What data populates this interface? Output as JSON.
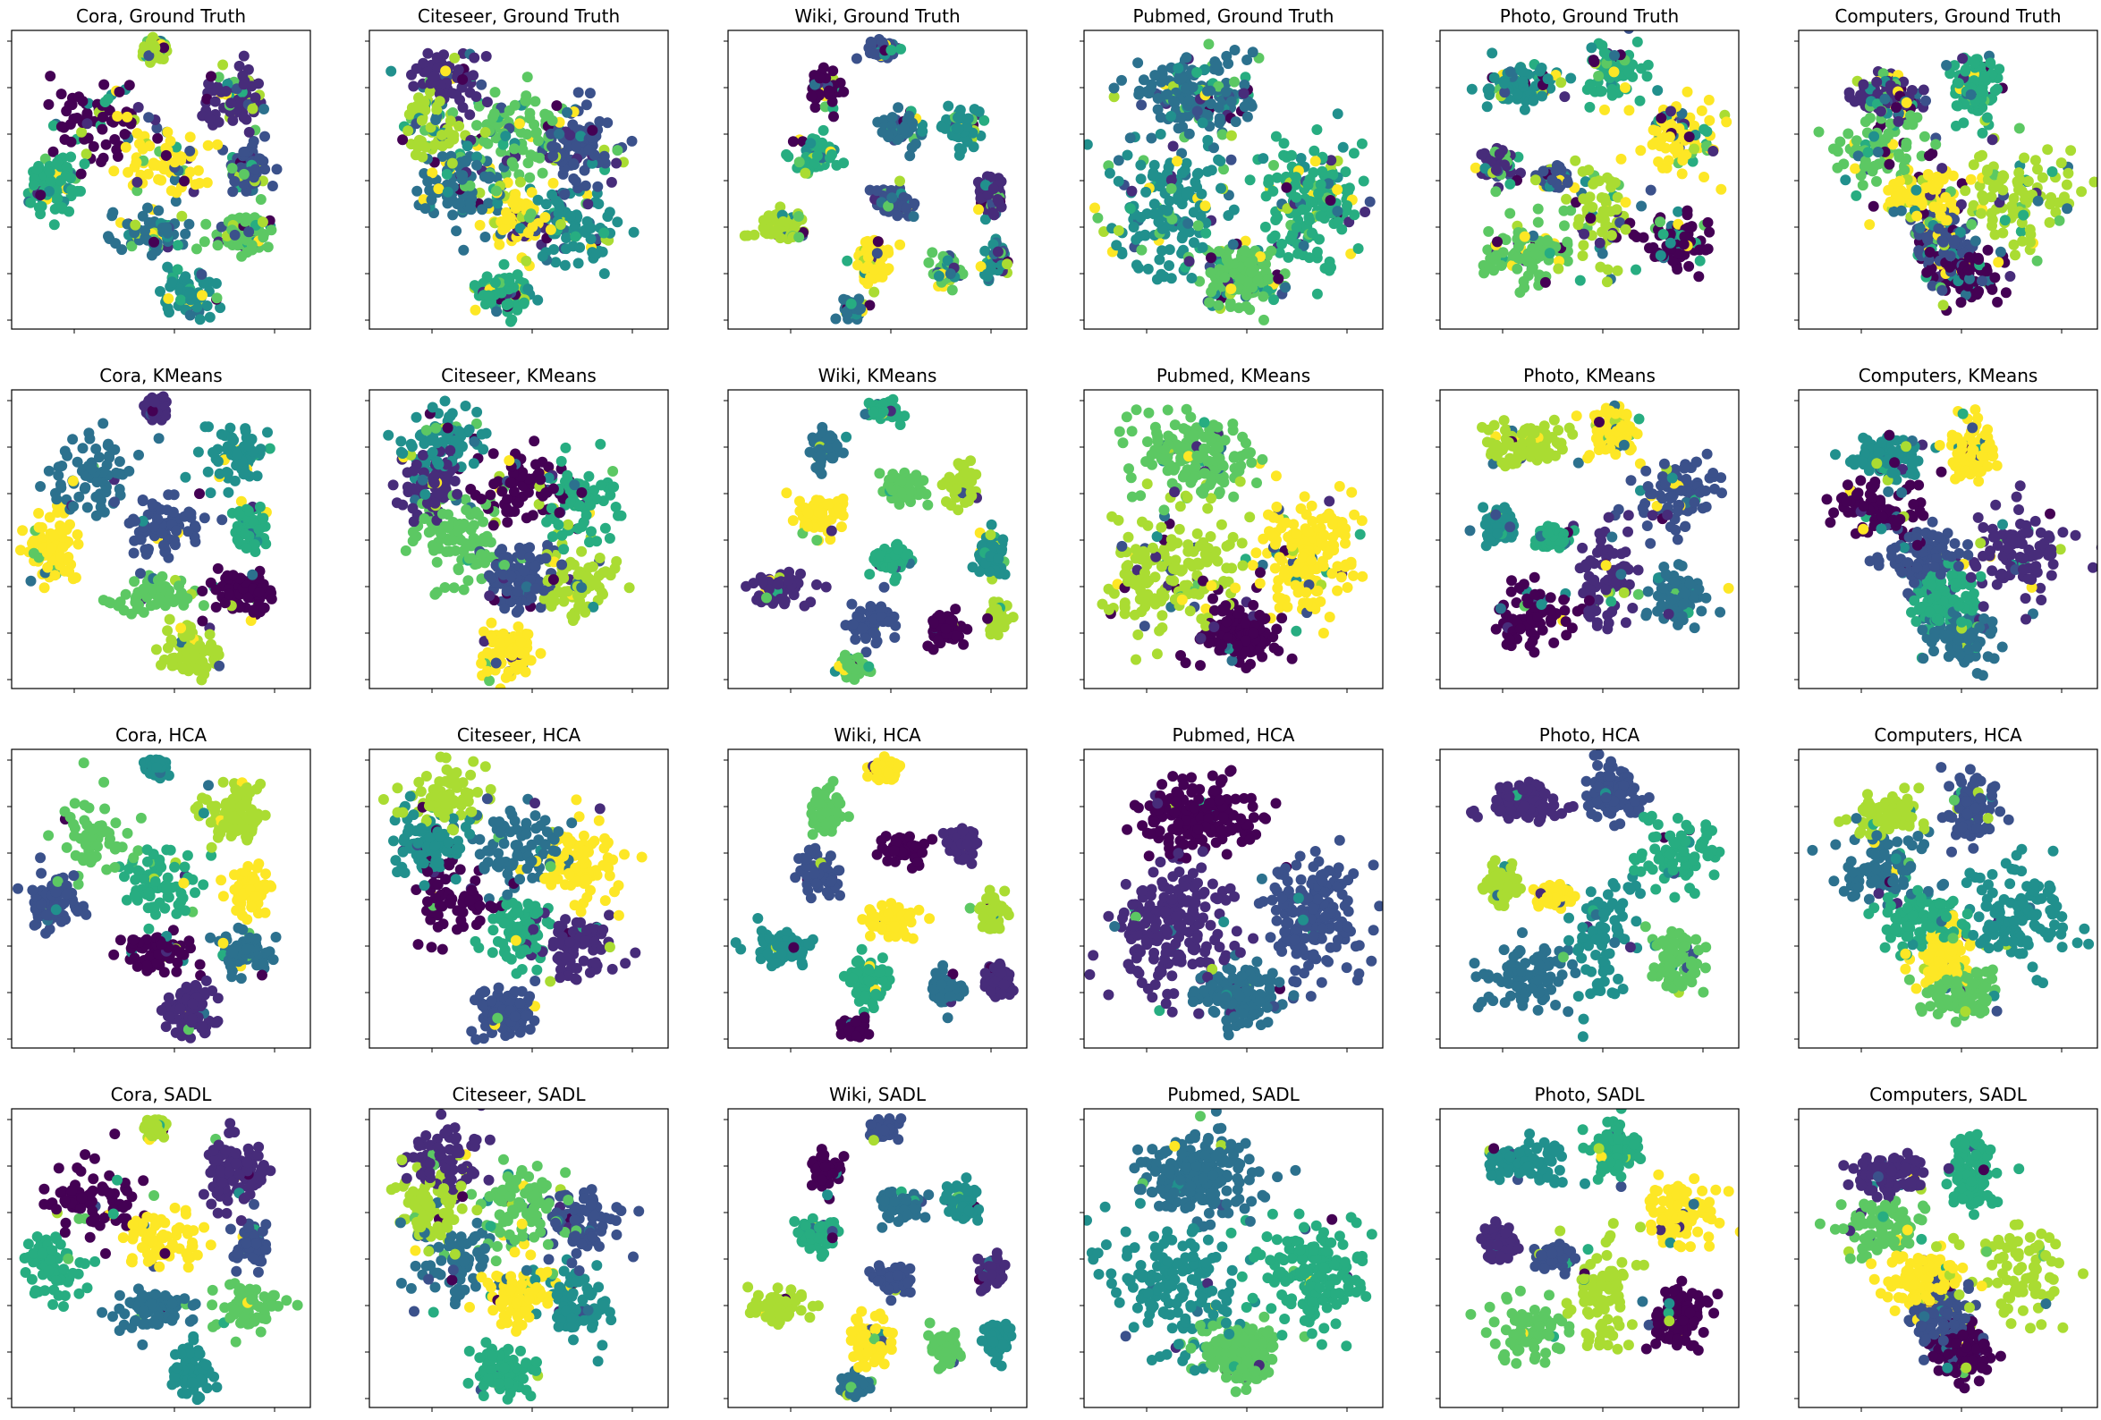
{
  "figure": {
    "type": "scatter-grid",
    "rows": [
      "Ground Truth",
      "KMeans",
      "HCA",
      "SADL"
    ],
    "columns": [
      "Cora",
      "Citeseer",
      "Wiki",
      "Pubmed",
      "Photo",
      "Computers"
    ],
    "palette": "viridis",
    "colors": [
      "#440154",
      "#472c7a",
      "#3b518b",
      "#2c718e",
      "#21908d",
      "#27ad81",
      "#5cc863",
      "#aadc32",
      "#fde725"
    ],
    "tick_labels_visible": false
  },
  "chart_data": [
    {
      "type": "scatter",
      "title": "Cora, Ground Truth"
    },
    {
      "type": "scatter",
      "title": "Citeseer, Ground Truth"
    },
    {
      "type": "scatter",
      "title": "Wiki, Ground Truth"
    },
    {
      "type": "scatter",
      "title": "Pubmed, Ground Truth"
    },
    {
      "type": "scatter",
      "title": "Photo, Ground Truth"
    },
    {
      "type": "scatter",
      "title": "Computers, Ground Truth"
    },
    {
      "type": "scatter",
      "title": "Cora, KMeans"
    },
    {
      "type": "scatter",
      "title": "Citeseer, KMeans"
    },
    {
      "type": "scatter",
      "title": "Wiki, KMeans"
    },
    {
      "type": "scatter",
      "title": "Pubmed, KMeans"
    },
    {
      "type": "scatter",
      "title": "Photo, KMeans"
    },
    {
      "type": "scatter",
      "title": "Computers, KMeans"
    },
    {
      "type": "scatter",
      "title": "Cora, HCA"
    },
    {
      "type": "scatter",
      "title": "Citeseer, HCA"
    },
    {
      "type": "scatter",
      "title": "Wiki, HCA"
    },
    {
      "type": "scatter",
      "title": "Pubmed, HCA"
    },
    {
      "type": "scatter",
      "title": "Photo, HCA"
    },
    {
      "type": "scatter",
      "title": "Computers, HCA"
    },
    {
      "type": "scatter",
      "title": "Cora, SADL"
    },
    {
      "type": "scatter",
      "title": "Citeseer, SADL"
    },
    {
      "type": "scatter",
      "title": "Wiki, SADL"
    },
    {
      "type": "scatter",
      "title": "Pubmed, SADL"
    },
    {
      "type": "scatter",
      "title": "Photo, SADL"
    },
    {
      "type": "scatter",
      "title": "Computers, SADL"
    }
  ]
}
